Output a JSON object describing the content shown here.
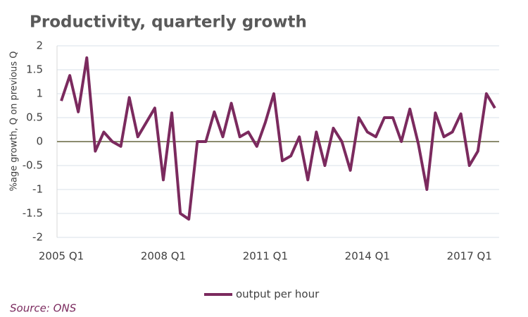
{
  "chart_data": {
    "type": "line",
    "title": "Productivity, quarterly growth",
    "y_label": "%age growth, Q on previous Q",
    "source": "Source: ONS",
    "categories": [
      "2005 Q1",
      null,
      null,
      null,
      null,
      null,
      null,
      null,
      null,
      null,
      null,
      null,
      "2008 Q1",
      null,
      null,
      null,
      null,
      null,
      null,
      null,
      null,
      null,
      null,
      null,
      "2011 Q1",
      null,
      null,
      null,
      null,
      null,
      null,
      null,
      null,
      null,
      null,
      null,
      "2014 Q1",
      null,
      null,
      null,
      null,
      null,
      null,
      null,
      null,
      null,
      null,
      null,
      "2017 Q1",
      null,
      null,
      null
    ],
    "series": [
      {
        "name": "output per hour",
        "color": "#7b2a5e",
        "values": [
          0.85,
          1.38,
          0.62,
          1.75,
          -0.2,
          0.2,
          0.0,
          -0.1,
          0.92,
          0.1,
          0.4,
          0.7,
          -0.8,
          0.6,
          -1.5,
          -1.62,
          0.0,
          0.0,
          0.62,
          0.1,
          0.8,
          0.1,
          0.2,
          -0.1,
          0.4,
          1.0,
          -0.4,
          -0.3,
          0.1,
          -0.8,
          0.2,
          -0.5,
          0.28,
          0.0,
          -0.6,
          0.5,
          0.2,
          0.1,
          0.5,
          0.5,
          0.0,
          0.68,
          -0.05,
          -1.0,
          0.6,
          0.1,
          0.2,
          0.58,
          -0.5,
          -0.2,
          1.0,
          0.7
        ]
      }
    ],
    "ylim": [
      -2,
      2
    ],
    "yticks": [
      -2,
      -1.5,
      -1,
      -0.5,
      0,
      0.5,
      1,
      1.5,
      2
    ],
    "grid": true
  }
}
